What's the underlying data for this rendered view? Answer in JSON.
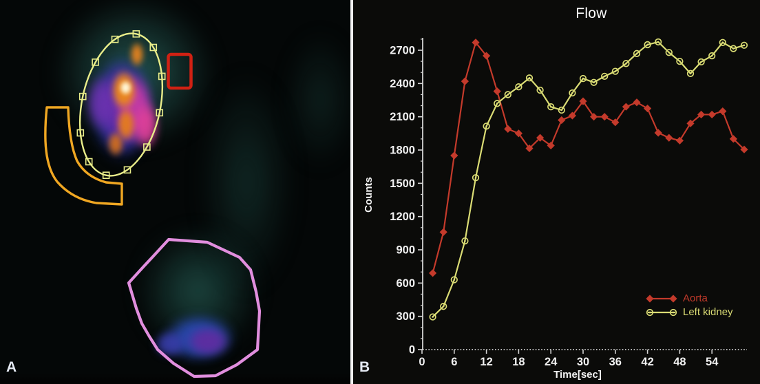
{
  "panel_a": {
    "label": "A",
    "rois": [
      {
        "name": "kidney-ellipse-roi",
        "color": "#e9ed8a"
      },
      {
        "name": "background-rect-roi",
        "color": "#d02113"
      },
      {
        "name": "perirenal-band-roi",
        "color": "#f0a722"
      },
      {
        "name": "bladder-polygon-roi",
        "color": "#e18ede"
      }
    ]
  },
  "panel_b": {
    "label": "B"
  },
  "chart_data": {
    "type": "line",
    "title": "Flow",
    "xlabel": "Time[sec]",
    "ylabel": "Counts",
    "x": [
      2,
      4,
      6,
      8,
      10,
      12,
      14,
      16,
      18,
      20,
      22,
      24,
      26,
      28,
      30,
      32,
      34,
      36,
      38,
      40,
      42,
      44,
      46,
      48,
      50,
      52,
      54,
      56,
      58,
      60
    ],
    "series": [
      {
        "name": "Aorta",
        "color": "#c43a2b",
        "marker": "diamond",
        "values": [
          690,
          1060,
          1750,
          2420,
          2770,
          2650,
          2330,
          1990,
          1950,
          1815,
          1910,
          1840,
          2070,
          2110,
          2240,
          2100,
          2100,
          2050,
          2190,
          2230,
          2175,
          1955,
          1910,
          1885,
          2040,
          2120,
          2120,
          2150,
          1900,
          1805
        ]
      },
      {
        "name": "Left kidney",
        "color": "#dadc74",
        "marker": "open-circle",
        "values": [
          295,
          390,
          630,
          980,
          1550,
          2015,
          2220,
          2300,
          2370,
          2450,
          2340,
          2190,
          2160,
          2315,
          2445,
          2410,
          2465,
          2510,
          2580,
          2670,
          2750,
          2775,
          2680,
          2600,
          2490,
          2595,
          2650,
          2770,
          2715,
          2745
        ]
      }
    ],
    "xticks": [
      0,
      6,
      12,
      18,
      24,
      30,
      36,
      42,
      48,
      54
    ],
    "yticks": [
      0,
      300,
      600,
      900,
      1200,
      1500,
      1800,
      2100,
      2400,
      2700
    ],
    "xlim": [
      0,
      60.5
    ],
    "ylim": [
      0,
      2810
    ],
    "grid": false,
    "legend_position": "lower right",
    "background": "#0b0b09",
    "axis_color": "#d4d4d4",
    "text_color": "#f2f2f2"
  }
}
